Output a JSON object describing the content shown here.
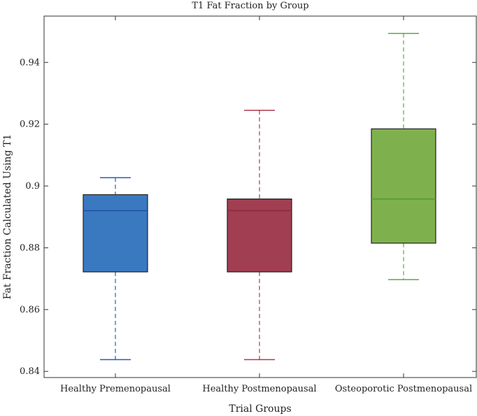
{
  "chart_data": {
    "type": "box",
    "title": "T1 Fat Fraction by Group",
    "xlabel": "Trial Groups",
    "ylabel": "Fat Fraction Calculated Using T1",
    "ylim": [
      0.838,
      0.955
    ],
    "yticks": [
      0.84,
      0.86,
      0.88,
      0.9,
      0.92,
      0.94
    ],
    "ytick_labels": [
      "0.84",
      "0.86",
      "0.88",
      "0.9",
      "0.92",
      "0.94"
    ],
    "grid": false,
    "categories": [
      "Healthy Premenopausal",
      "Healthy Postmenopausal",
      "Osteoporotic Postmenopausal"
    ],
    "boxes": [
      {
        "name": "Healthy Premenopausal",
        "min": 0.8438,
        "q1": 0.8722,
        "median": 0.892,
        "q3": 0.8972,
        "max": 0.9027,
        "fill": "#3a78c0",
        "whisker_color": "#2a5bb8",
        "median_color": "#1f4fa8"
      },
      {
        "name": "Healthy Postmenopausal",
        "min": 0.8438,
        "q1": 0.8722,
        "median": 0.892,
        "q3": 0.8958,
        "max": 0.9245,
        "fill": "#a13e52",
        "whisker_color": "#b03a4c",
        "median_color": "#8a2a3c"
      },
      {
        "name": "Osteoporotic Postmenopausal",
        "min": 0.8697,
        "q1": 0.8815,
        "median": 0.8958,
        "q3": 0.9185,
        "max": 0.9494,
        "fill": "#7fb04e",
        "whisker_color": "#5aac3a",
        "median_color": "#4e9a2e"
      }
    ]
  }
}
